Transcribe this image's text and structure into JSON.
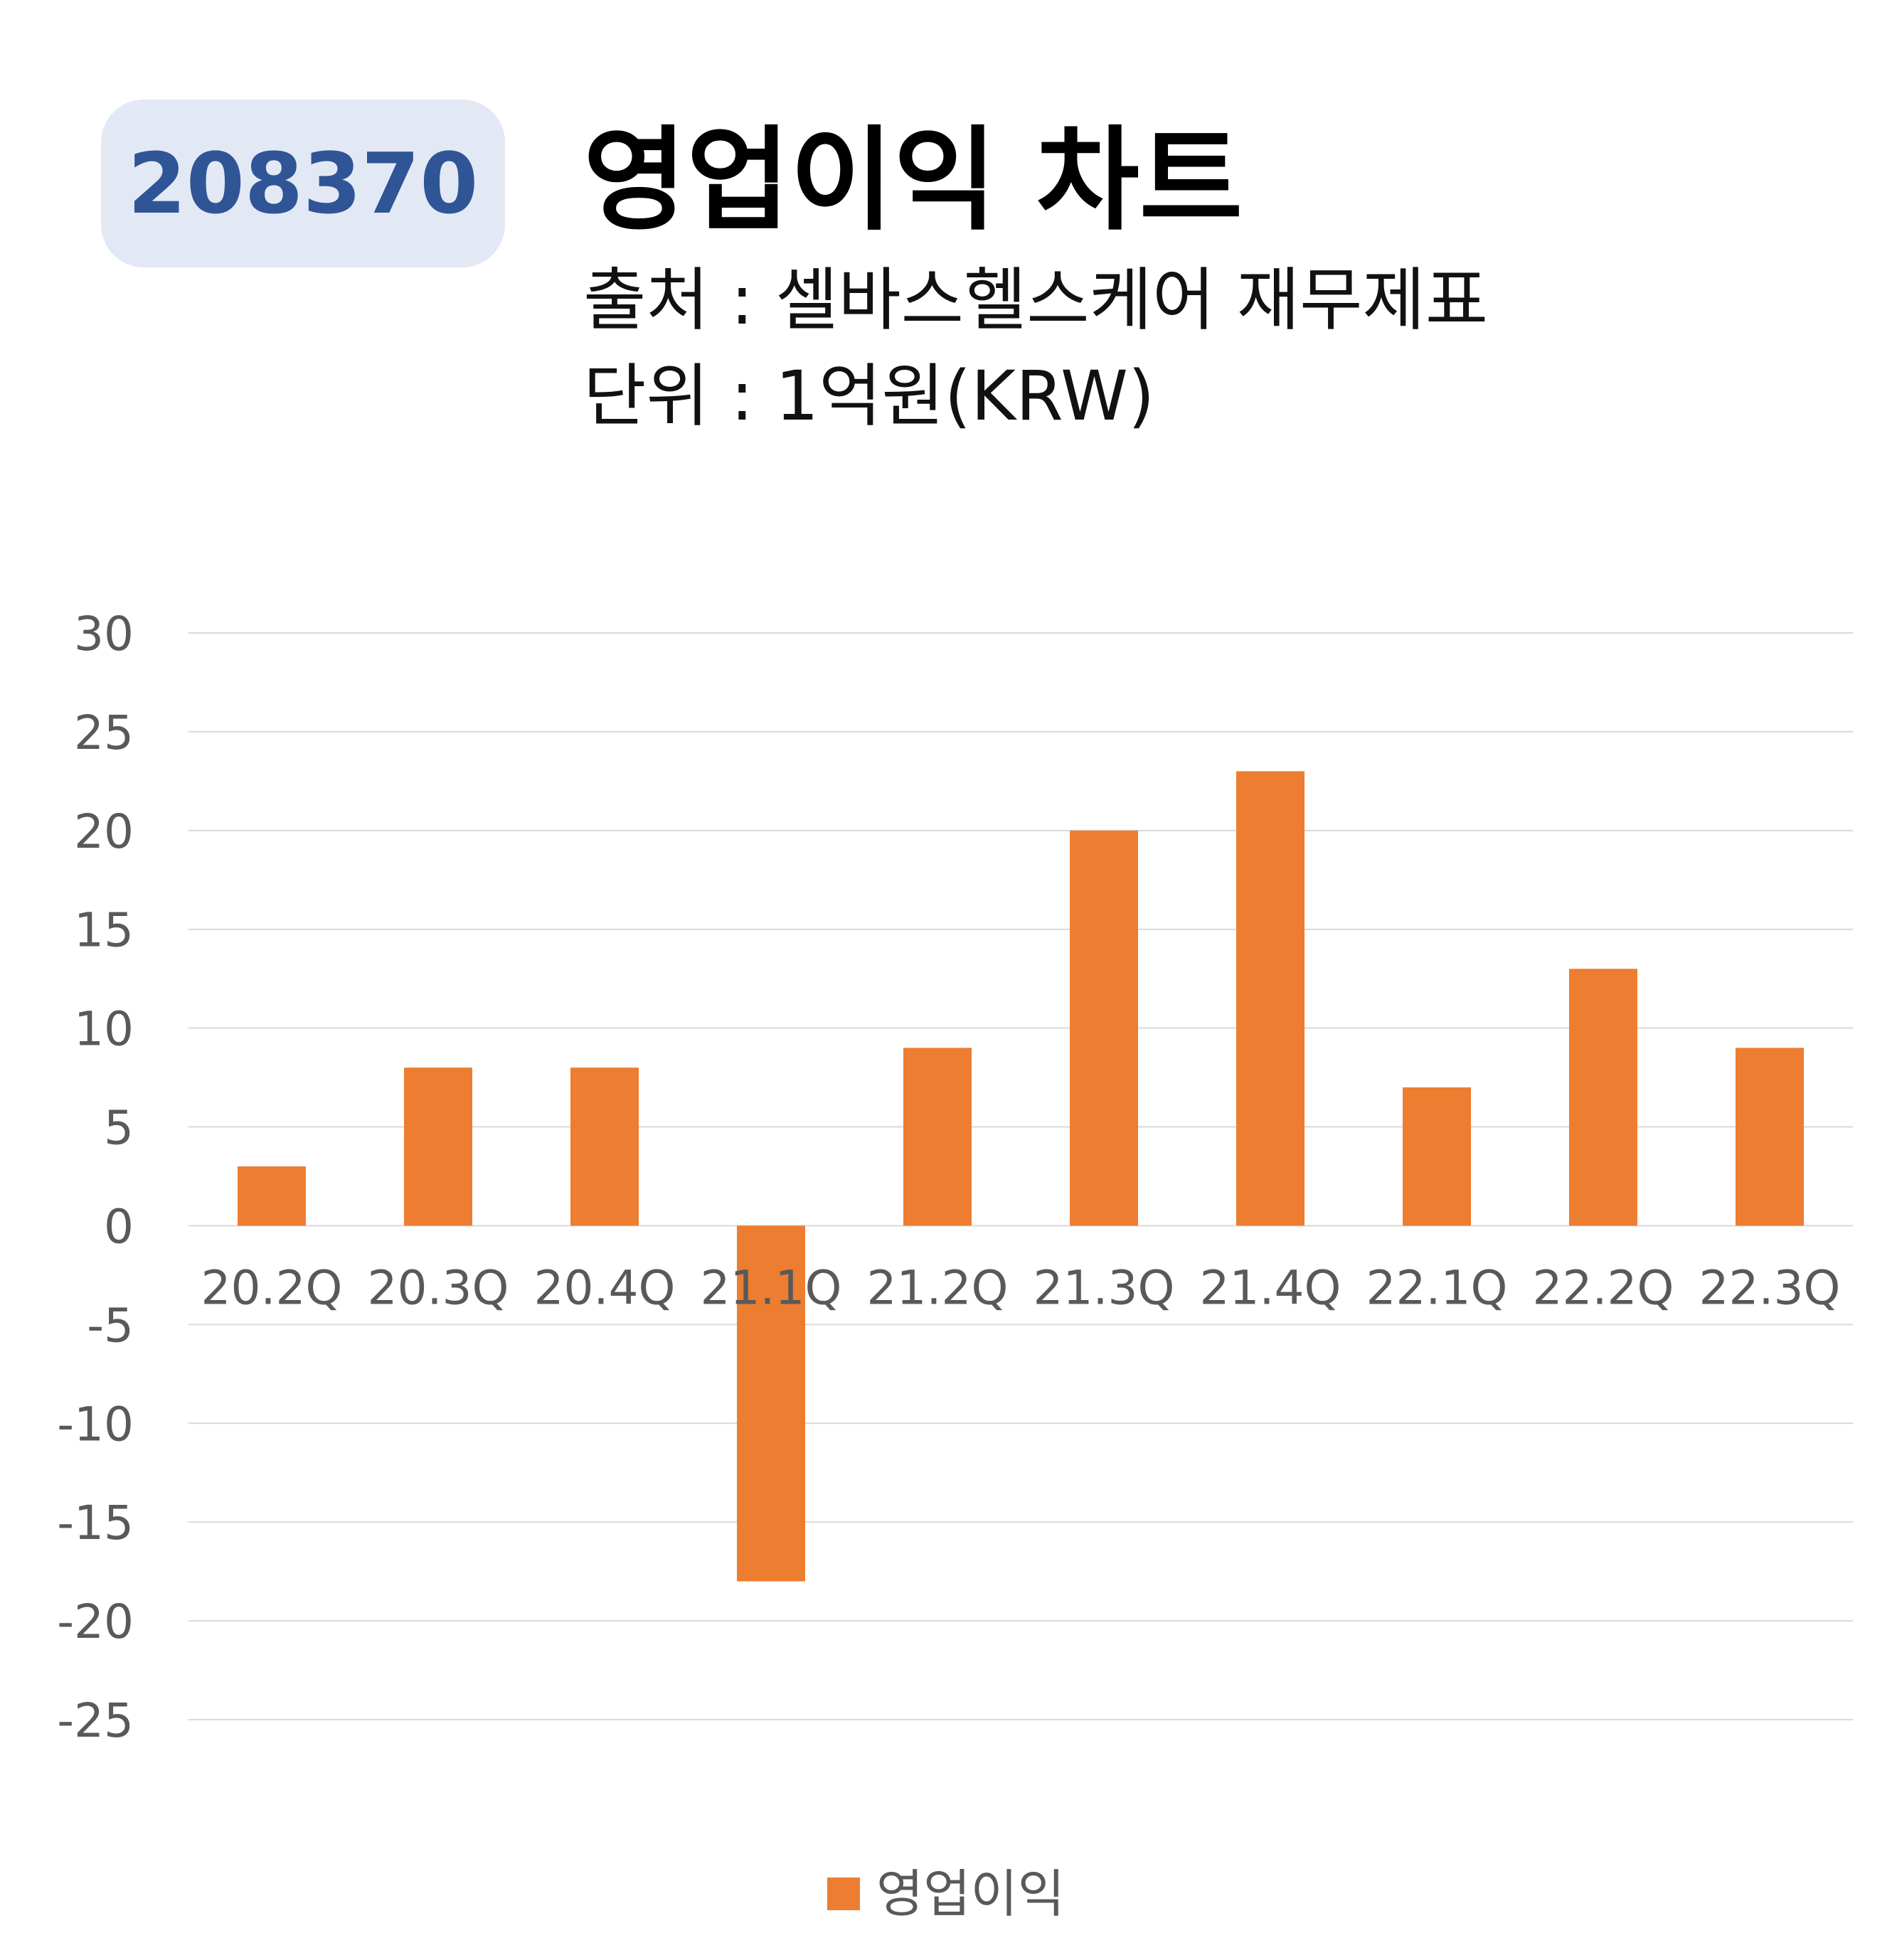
{
  "header": {
    "code": "208370",
    "title": "영업이익 차트",
    "source": "출처 : 셀바스헬스케어 재무제표",
    "unit": "단위 : 1억원(KRW)"
  },
  "colors": {
    "bar": "#ed7d31",
    "grid": "#d9d9d9",
    "badge_bg": "#e3e9f4",
    "badge_text": "#2f5597"
  },
  "chart_data": {
    "type": "bar",
    "categories": [
      "20.2Q",
      "20.3Q",
      "20.4Q",
      "21.1Q",
      "21.2Q",
      "21.3Q",
      "21.4Q",
      "22.1Q",
      "22.2Q",
      "22.3Q"
    ],
    "series": [
      {
        "name": "영업이익",
        "values": [
          3,
          8,
          8,
          -18,
          9,
          20,
          23,
          7,
          13,
          9
        ]
      }
    ],
    "yticks": [
      "30",
      "25",
      "20",
      "15",
      "10",
      "5",
      "0",
      "-5",
      "-10",
      "-15",
      "-20",
      "-25"
    ],
    "ylim": [
      -25,
      30
    ],
    "grid": true,
    "legend": "bottom"
  }
}
